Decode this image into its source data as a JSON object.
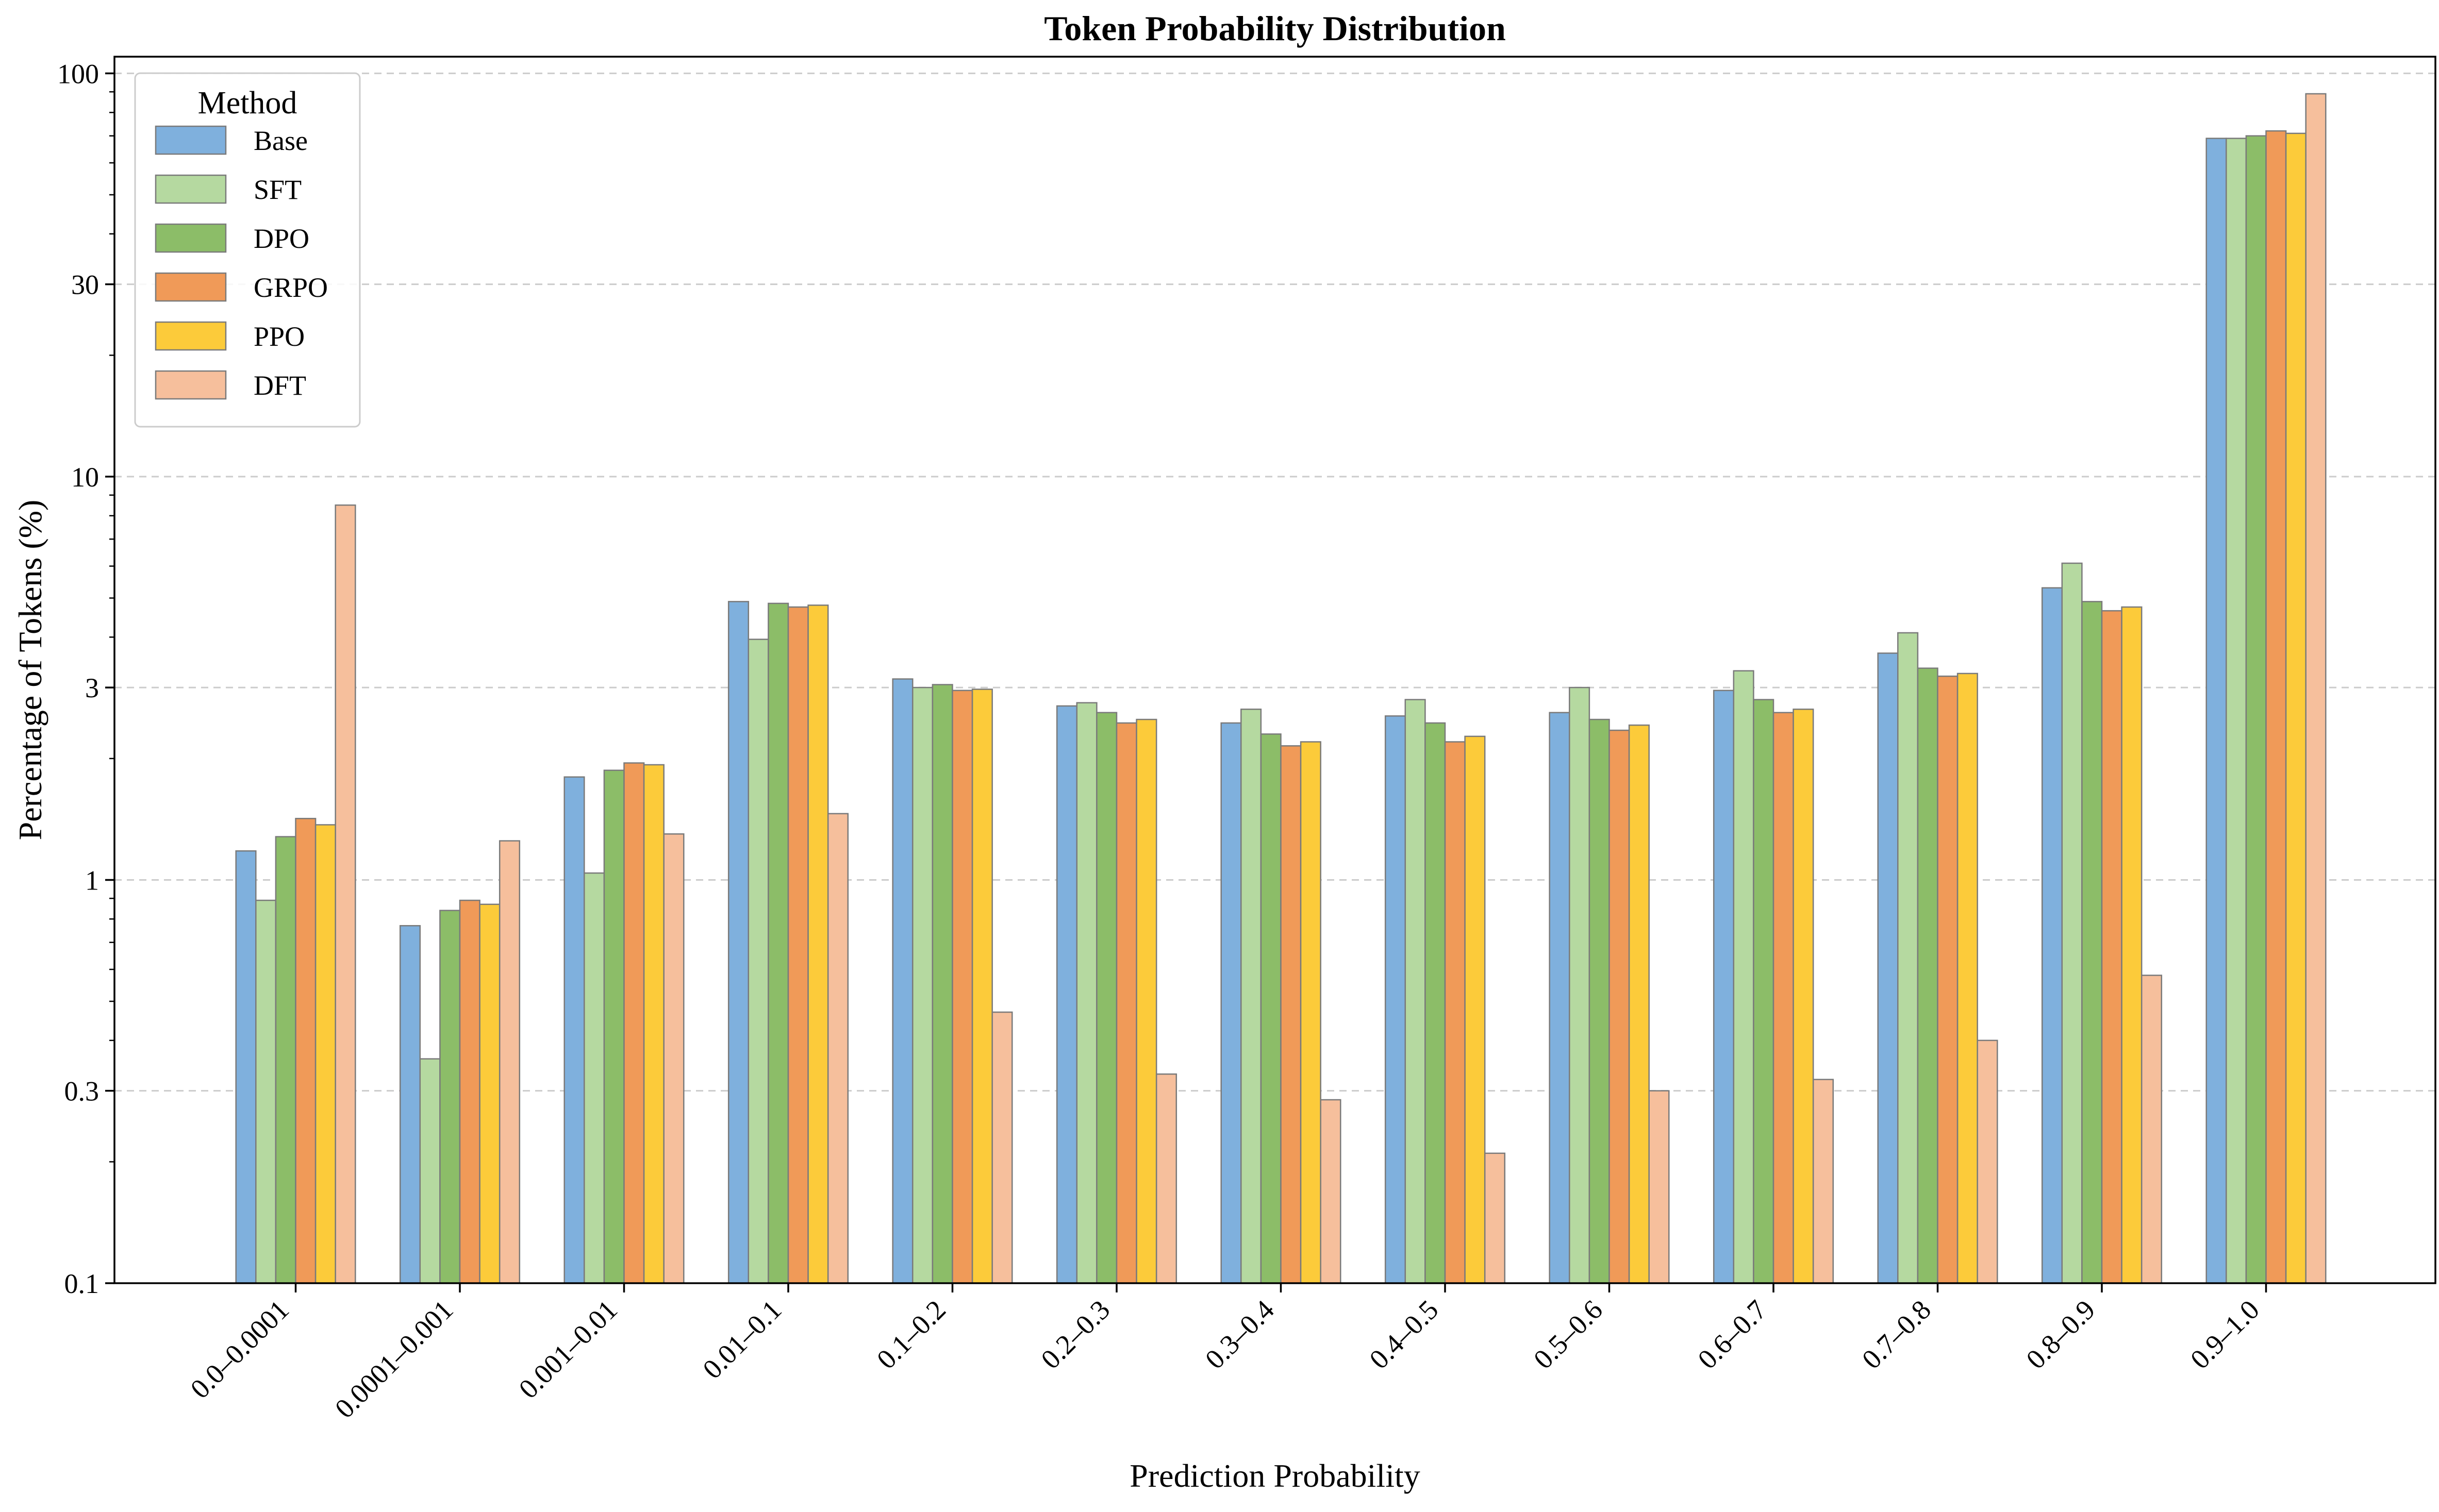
{
  "chart_data": {
    "type": "bar",
    "title": "Token Probability Distribution",
    "xlabel": "Prediction Probability",
    "ylabel": "Percentage of Tokens (%)",
    "yscale": "log",
    "ylim": [
      0.1,
      110
    ],
    "yticks": [
      0.1,
      0.3,
      1,
      3,
      10,
      30,
      100
    ],
    "ytick_labels": [
      "0.1",
      "0.3",
      "1",
      "3",
      "10",
      "30",
      "100"
    ],
    "grid": "y-dashed",
    "legend": {
      "title": "Method",
      "position": "top-left"
    },
    "categories": [
      "0.0–0.0001",
      "0.0001–0.001",
      "0.001–0.01",
      "0.01–0.1",
      "0.1–0.2",
      "0.2–0.3",
      "0.3–0.4",
      "0.4–0.5",
      "0.5–0.6",
      "0.6–0.7",
      "0.7–0.8",
      "0.8–0.9",
      "0.9–1.0"
    ],
    "series": [
      {
        "name": "Base",
        "color": "#7fb0dd",
        "values": [
          1.18,
          0.77,
          1.8,
          4.9,
          3.15,
          2.7,
          2.45,
          2.55,
          2.6,
          2.95,
          3.65,
          5.3,
          69.0
        ]
      },
      {
        "name": "SFT",
        "color": "#b5d9a0",
        "values": [
          0.89,
          0.36,
          1.04,
          3.95,
          3.0,
          2.75,
          2.65,
          2.8,
          3.0,
          3.3,
          4.1,
          6.1,
          69.0
        ]
      },
      {
        "name": "DPO",
        "color": "#8cbd68",
        "values": [
          1.28,
          0.84,
          1.87,
          4.85,
          3.05,
          2.6,
          2.3,
          2.45,
          2.5,
          2.8,
          3.35,
          4.9,
          70.0
        ]
      },
      {
        "name": "GRPO",
        "color": "#f09a58",
        "values": [
          1.42,
          0.89,
          1.95,
          4.75,
          2.95,
          2.45,
          2.15,
          2.2,
          2.35,
          2.6,
          3.2,
          4.65,
          72.0
        ]
      },
      {
        "name": "PPO",
        "color": "#fccb3a",
        "values": [
          1.37,
          0.87,
          1.93,
          4.8,
          2.97,
          2.5,
          2.2,
          2.27,
          2.42,
          2.65,
          3.25,
          4.75,
          71.0
        ]
      },
      {
        "name": "DFT",
        "color": "#f6bf9c",
        "values": [
          8.5,
          1.25,
          1.3,
          1.46,
          0.47,
          0.33,
          0.285,
          0.21,
          0.3,
          0.32,
          0.4,
          0.58,
          89.0
        ]
      }
    ]
  }
}
